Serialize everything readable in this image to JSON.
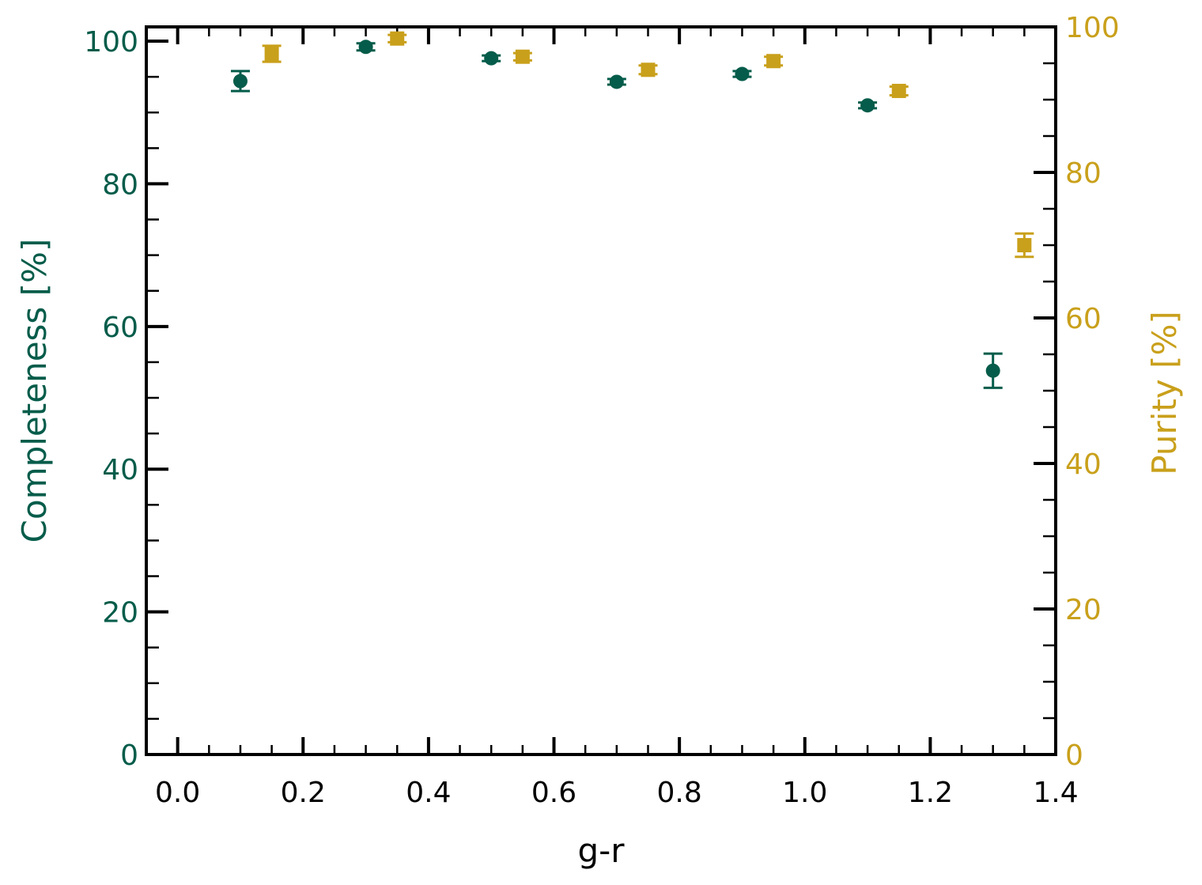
{
  "chart_data": {
    "type": "scatter",
    "xlabel": "g-r",
    "ylabel_left": "Completeness [%]",
    "ylabel_right": "Purity [%]",
    "xlim": [
      -0.05,
      1.4
    ],
    "ylim_left": [
      0,
      102
    ],
    "ylim_right": [
      0,
      100
    ],
    "x_ticks": [
      "0.0",
      "0.2",
      "0.4",
      "0.6",
      "0.8",
      "1.0",
      "1.2",
      "1.4"
    ],
    "y_left_ticks": [
      "0",
      "20",
      "40",
      "60",
      "80",
      "100"
    ],
    "y_right_ticks": [
      "0",
      "20",
      "40",
      "60",
      "80",
      "100"
    ],
    "grid": false,
    "series": [
      {
        "axis": "left",
        "marker": "circle",
        "color": "#055c4a",
        "points": [
          {
            "x": 0.1,
            "y": 94.4,
            "err": 1.4
          },
          {
            "x": 0.3,
            "y": 99.2,
            "err": 0.5
          },
          {
            "x": 0.5,
            "y": 97.6,
            "err": 0.4
          },
          {
            "x": 0.7,
            "y": 94.3,
            "err": 0.4
          },
          {
            "x": 0.9,
            "y": 95.4,
            "err": 0.4
          },
          {
            "x": 1.1,
            "y": 91.0,
            "err": 0.4
          },
          {
            "x": 1.3,
            "y": 53.8,
            "err": 2.4
          }
        ]
      },
      {
        "axis": "right",
        "marker": "square",
        "color": "#c9a01b",
        "points": [
          {
            "x": 0.15,
            "y": 96.3,
            "err": 1.1
          },
          {
            "x": 0.35,
            "y": 98.4,
            "err": 0.5
          },
          {
            "x": 0.55,
            "y": 95.9,
            "err": 0.5
          },
          {
            "x": 0.75,
            "y": 94.1,
            "err": 0.6
          },
          {
            "x": 0.95,
            "y": 95.3,
            "err": 0.6
          },
          {
            "x": 1.15,
            "y": 91.2,
            "err": 0.6
          },
          {
            "x": 1.35,
            "y": 70.0,
            "err": 1.6
          }
        ]
      }
    ],
    "colors": {
      "left_axis": "#055c4a",
      "right_axis": "#c9a01b",
      "frame": "#000000"
    }
  }
}
